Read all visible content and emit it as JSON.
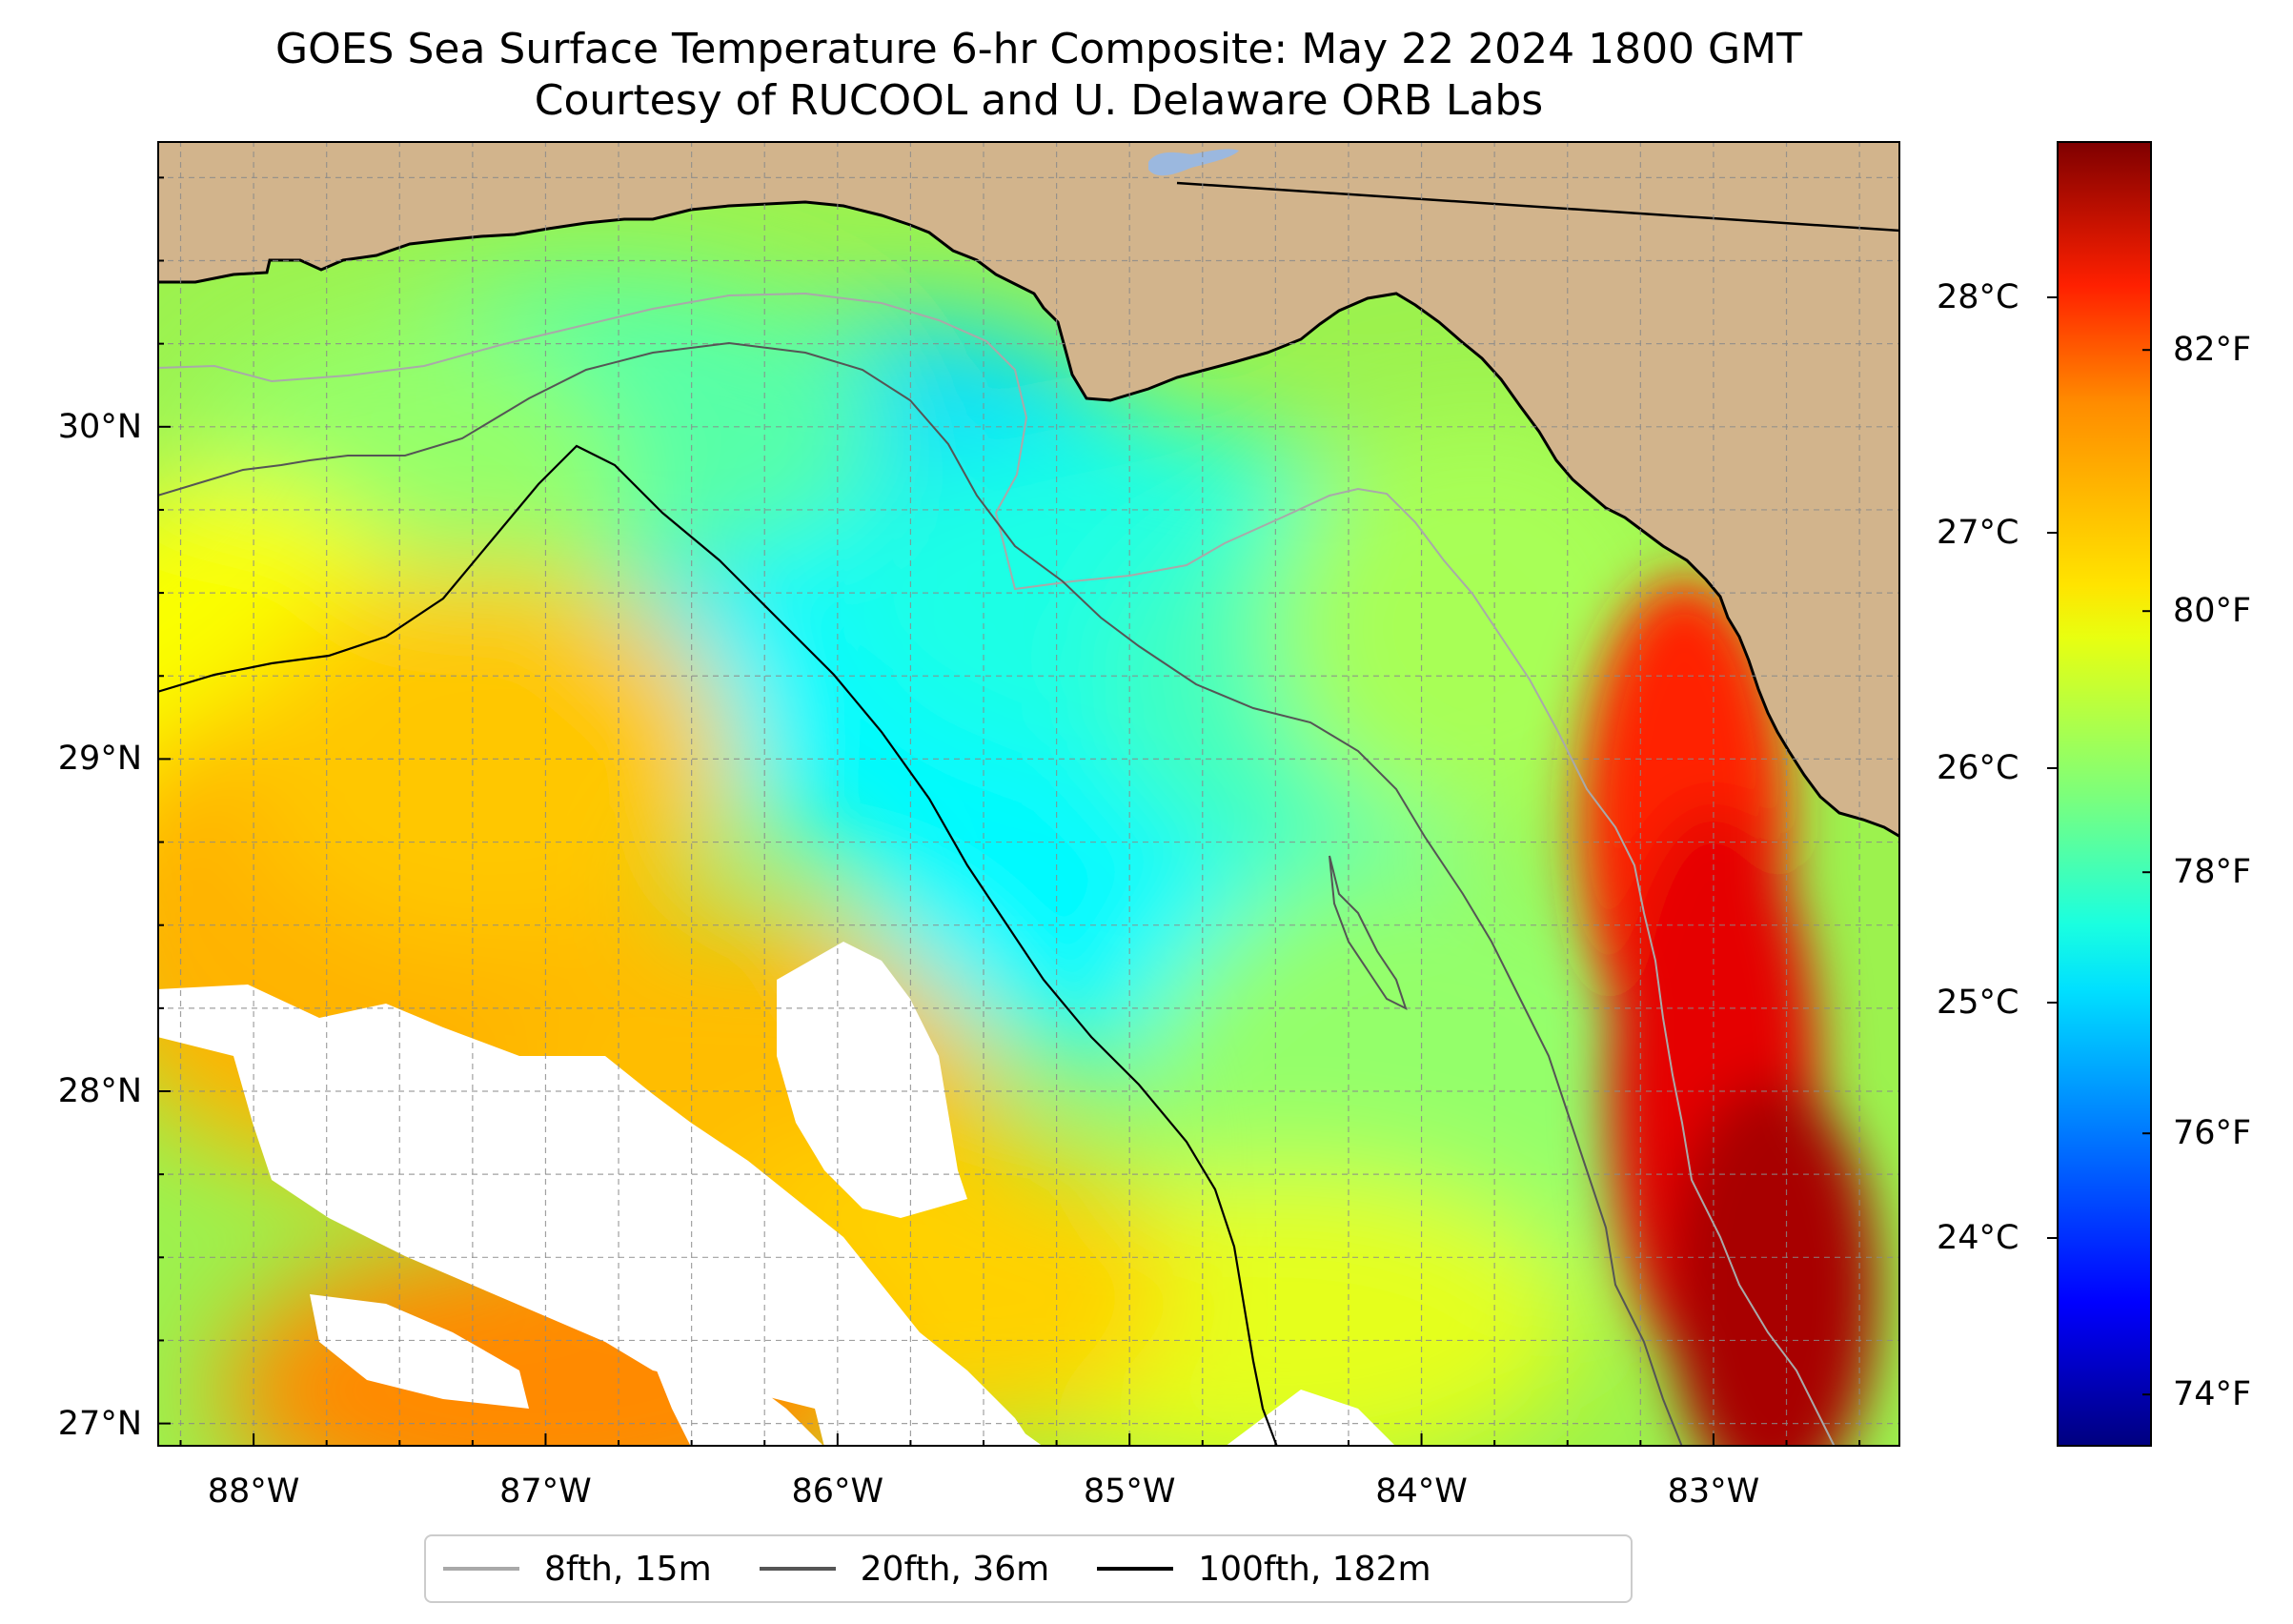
{
  "figure": {
    "title_line1": "GOES Sea Surface Temperature 6-hr Composite: May 22 2024 1800 GMT",
    "title_line2": "Courtesy of RUCOOL and U. Delaware ORB Labs"
  },
  "map": {
    "lon_range": [
      -88.33,
      -82.36
    ],
    "lat_range": [
      26.93,
      30.86
    ],
    "land_color": "#d2b48c",
    "lake_color": "#9bb8df",
    "gridlines": "dashed gray",
    "lon_ticks": [
      {
        "value": -88,
        "label": "88°W"
      },
      {
        "value": -87,
        "label": "87°W"
      },
      {
        "value": -86,
        "label": "86°W"
      },
      {
        "value": -85,
        "label": "85°W"
      },
      {
        "value": -84,
        "label": "84°W"
      },
      {
        "value": -83,
        "label": "83°W"
      }
    ],
    "lat_ticks": [
      {
        "value": 30,
        "label": "30°N"
      },
      {
        "value": 29,
        "label": "29°N"
      },
      {
        "value": 28,
        "label": "28°N"
      },
      {
        "value": 27,
        "label": "27°N"
      }
    ]
  },
  "colorbar": {
    "colormap": "jet",
    "range_f": [
      73.6,
      83.6
    ],
    "fahrenheit_ticks": [
      {
        "value": 74,
        "label": "74°F"
      },
      {
        "value": 76,
        "label": "76°F"
      },
      {
        "value": 78,
        "label": "78°F"
      },
      {
        "value": 80,
        "label": "80°F"
      },
      {
        "value": 82,
        "label": "82°F"
      }
    ],
    "celsius_ticks": [
      {
        "value": 24,
        "label": "24°C"
      },
      {
        "value": 25,
        "label": "25°C"
      },
      {
        "value": 26,
        "label": "26°C"
      },
      {
        "value": 27,
        "label": "27°C"
      },
      {
        "value": 28,
        "label": "28°C"
      }
    ]
  },
  "legend": {
    "items": [
      {
        "label": "8fth, 15m",
        "color": "#a9a9a9"
      },
      {
        "label": "20fth, 36m",
        "color": "#555555"
      },
      {
        "label": "100fth, 182m",
        "color": "#000000"
      }
    ]
  },
  "chart_data": {
    "type": "heatmap",
    "title": "GOES Sea Surface Temperature 6-hr Composite: May 22 2024 1800 GMT",
    "subtitle": "Courtesy of RUCOOL and U. Delaware ORB Labs",
    "xlim": [
      -88.33,
      -82.36
    ],
    "ylim": [
      26.93,
      30.86
    ],
    "color_scale_f": [
      73.6,
      83.6
    ],
    "temperature_regions_f": [
      {
        "lon": -85.8,
        "lat": 29.7,
        "value": 77.0
      },
      {
        "lon": -85.6,
        "lat": 29.2,
        "value": 77.3
      },
      {
        "lon": -84.9,
        "lat": 28.7,
        "value": 77.3
      },
      {
        "lon": -85.0,
        "lat": 29.5,
        "value": 77.6
      },
      {
        "lon": -84.3,
        "lat": 29.2,
        "value": 78.0
      },
      {
        "lon": -86.8,
        "lat": 30.0,
        "value": 78.2
      },
      {
        "lon": -87.5,
        "lat": 29.8,
        "value": 78.8
      },
      {
        "lon": -84.0,
        "lat": 28.0,
        "value": 78.8
      },
      {
        "lon": -83.8,
        "lat": 29.4,
        "value": 79.0
      },
      {
        "lon": -88.1,
        "lat": 29.1,
        "value": 79.8
      },
      {
        "lon": -84.5,
        "lat": 27.3,
        "value": 79.6
      },
      {
        "lon": -87.6,
        "lat": 28.5,
        "value": 80.6
      },
      {
        "lon": -87.2,
        "lat": 29.0,
        "value": 80.4
      },
      {
        "lon": -86.3,
        "lat": 27.9,
        "value": 80.5
      },
      {
        "lon": -85.7,
        "lat": 27.4,
        "value": 80.3
      },
      {
        "lon": -87.0,
        "lat": 27.1,
        "value": 81.0
      },
      {
        "lon": -83.1,
        "lat": 28.8,
        "value": 82.0
      },
      {
        "lon": -83.0,
        "lat": 28.0,
        "value": 82.6
      },
      {
        "lon": -82.8,
        "lat": 27.4,
        "value": 83.2
      }
    ],
    "contours": [
      {
        "name": "8fth, 15m",
        "color": "#a9a9a9"
      },
      {
        "name": "20fth, 36m",
        "color": "#555555"
      },
      {
        "name": "100fth, 182m",
        "color": "#000000"
      }
    ]
  }
}
